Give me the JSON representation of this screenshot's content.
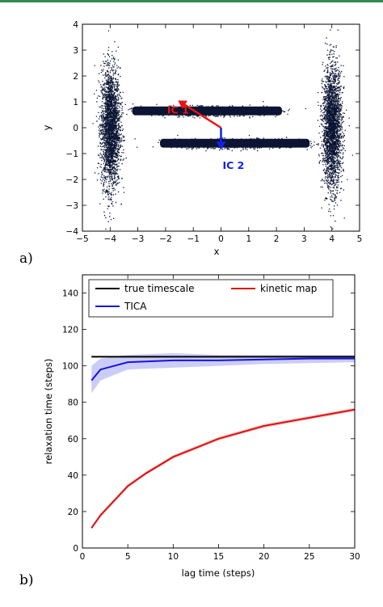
{
  "chart_data": [
    {
      "type": "scatter",
      "panel_label": "a)",
      "xlabel": "x",
      "ylabel": "y",
      "xlim": [
        -5,
        5
      ],
      "ylim": [
        -4,
        4
      ],
      "xticks": [
        -5,
        -4,
        -3,
        -2,
        -1,
        0,
        1,
        2,
        3,
        4,
        5
      ],
      "yticks": [
        -4,
        -3,
        -2,
        -1,
        0,
        1,
        2,
        3,
        4
      ],
      "point_color": "#0b1433",
      "clusters": [
        {
          "cx": -4.0,
          "cy": 0.0,
          "sx": 0.17,
          "sy": 1.15,
          "n": 2600
        },
        {
          "cx": 4.0,
          "cy": 0.0,
          "sx": 0.17,
          "sy": 1.15,
          "n": 2600
        },
        {
          "cx": -0.6,
          "cy": 0.65,
          "sx": 1.1,
          "sy": 0.09,
          "n": 1300
        },
        {
          "cx": 0.6,
          "cy": -0.6,
          "sx": 1.1,
          "sy": 0.09,
          "n": 1300
        }
      ],
      "bars": [
        {
          "x0": -3.2,
          "x1": 2.2,
          "cy": 0.65,
          "half_h": 0.17
        },
        {
          "x0": -2.2,
          "x1": 3.2,
          "cy": -0.6,
          "half_h": 0.17
        }
      ],
      "arrows": [
        {
          "label": "IC 1",
          "color": "#ee1111",
          "x0": 0.0,
          "y0": 0.0,
          "x1": -1.55,
          "y1": 1.05,
          "label_x": -1.55,
          "label_y": 0.55
        },
        {
          "label": "IC 2",
          "color": "#1122ee",
          "x0": 0.0,
          "y0": 0.0,
          "x1": 0.0,
          "y1": -0.85,
          "label_x": 0.45,
          "label_y": -1.6
        }
      ]
    },
    {
      "type": "line",
      "panel_label": "b)",
      "xlabel": "lag time (steps)",
      "ylabel": "relaxation time (steps)",
      "xlim": [
        0,
        30
      ],
      "ylim": [
        0,
        150
      ],
      "xticks": [
        0,
        5,
        10,
        15,
        20,
        25,
        30
      ],
      "yticks": [
        0,
        20,
        40,
        60,
        80,
        100,
        120,
        140
      ],
      "legend_position": "top",
      "series": [
        {
          "name": "true timescale",
          "color": "#000000",
          "x": [
            1,
            30
          ],
          "y": [
            105,
            105
          ]
        },
        {
          "name": "TICA",
          "color": "#1515dd",
          "x": [
            1,
            2,
            5,
            10,
            15,
            20,
            25,
            30
          ],
          "y": [
            92,
            98,
            102,
            103,
            103,
            103.5,
            104,
            104
          ],
          "lower": [
            85,
            92,
            98,
            99,
            100,
            101,
            101.5,
            102
          ],
          "upper": [
            100,
            104,
            106,
            107,
            106,
            106,
            106,
            106
          ]
        },
        {
          "name": "kinetic map",
          "color": "#dd1111",
          "x": [
            1,
            2,
            5,
            7,
            10,
            15,
            20,
            25,
            30
          ],
          "y": [
            11,
            18,
            34,
            41,
            50,
            60,
            67,
            71.5,
            76
          ],
          "lower": [
            10,
            17,
            33,
            40,
            49,
            59,
            66,
            70.5,
            75
          ],
          "upper": [
            12,
            19,
            35,
            42,
            51,
            61,
            68,
            72.5,
            77
          ]
        }
      ]
    }
  ]
}
